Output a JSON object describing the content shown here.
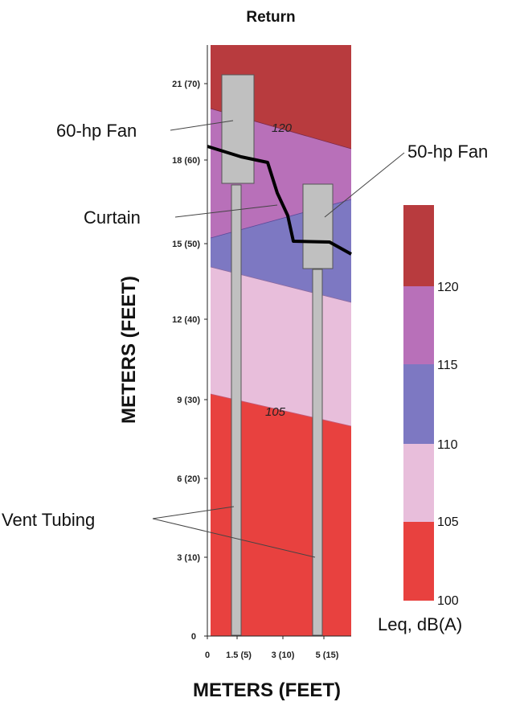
{
  "title": "Return",
  "x_axis": {
    "label": "METERS (FEET)",
    "ticks": [
      "0",
      "1.5 (5)",
      "3 (10)",
      "5 (15)"
    ]
  },
  "y_axis": {
    "label": "METERS (FEET)",
    "ticks": [
      "0",
      "3 (10)",
      "6 (20)",
      "9 (30)",
      "12 (40)",
      "15 (50)",
      "18 (60)",
      "21 (70)"
    ]
  },
  "callouts": {
    "fan60": "60-hp Fan",
    "fan50": "50-hp Fan",
    "curtain": "Curtain",
    "tubing": "Vent Tubing"
  },
  "contour_labels": {
    "c120": "120",
    "c105": "105"
  },
  "legend": {
    "title": "Leq, dB(A)",
    "ticks": [
      "100",
      "105",
      "110",
      "115",
      "120"
    ],
    "colors": {
      "band_100_105": "#e8413f",
      "band_105_110": "#e8bedb",
      "band_110_115": "#7d78c2",
      "band_115_120": "#b870b9",
      "band_120_plus": "#b83b3e"
    }
  }
}
